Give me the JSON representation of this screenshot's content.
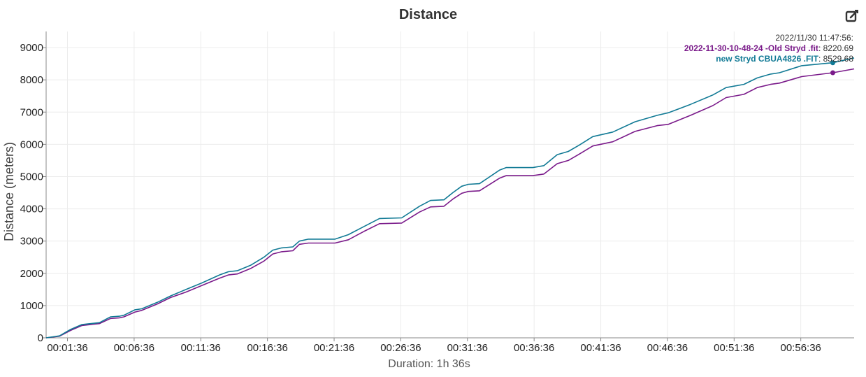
{
  "title": "Distance",
  "edit_icon": "edit-icon",
  "tooltip": {
    "timestamp": "2022/11/30 11:47:56:",
    "entries": [
      {
        "name": "2022-11-30-10-48-24 -Old Stryd .fit",
        "value": "8220.69",
        "color": "#7a1a8a"
      },
      {
        "name": "new Stryd CBUA4826 .FIT",
        "value": "8529.68",
        "color": "#117a95"
      }
    ]
  },
  "chart_data": {
    "type": "line",
    "title": "Distance",
    "xlabel": "Duration: 1h 36s",
    "ylabel": "Distance (meters)",
    "xlim": [
      0,
      3636
    ],
    "ylim": [
      0,
      9500
    ],
    "grid": true,
    "legend": "top-right",
    "x_ticks": [
      {
        "value": 96,
        "label": "00:01:36"
      },
      {
        "value": 396,
        "label": "00:06:36"
      },
      {
        "value": 696,
        "label": "00:11:36"
      },
      {
        "value": 996,
        "label": "00:16:36"
      },
      {
        "value": 1296,
        "label": "00:21:36"
      },
      {
        "value": 1596,
        "label": "00:26:36"
      },
      {
        "value": 1896,
        "label": "00:31:36"
      },
      {
        "value": 2196,
        "label": "00:36:36"
      },
      {
        "value": 2496,
        "label": "00:41:36"
      },
      {
        "value": 2796,
        "label": "00:46:36"
      },
      {
        "value": 3096,
        "label": "00:51:36"
      },
      {
        "value": 3396,
        "label": "00:56:36"
      }
    ],
    "y_ticks": [
      0,
      1000,
      2000,
      3000,
      4000,
      5000,
      6000,
      7000,
      8000,
      9000
    ],
    "cursor_x": 3540,
    "series": [
      {
        "name": "2022-11-30-10-48-24 -Old Stryd .fit",
        "color": "#7a1a8a",
        "cursor_value": 8220.69,
        "points": [
          [
            0,
            0
          ],
          [
            60,
            50
          ],
          [
            110,
            230
          ],
          [
            160,
            380
          ],
          [
            210,
            420
          ],
          [
            240,
            440
          ],
          [
            290,
            600
          ],
          [
            330,
            620
          ],
          [
            350,
            650
          ],
          [
            400,
            800
          ],
          [
            430,
            850
          ],
          [
            500,
            1050
          ],
          [
            560,
            1250
          ],
          [
            630,
            1420
          ],
          [
            700,
            1620
          ],
          [
            780,
            1850
          ],
          [
            820,
            1950
          ],
          [
            860,
            1980
          ],
          [
            920,
            2150
          ],
          [
            980,
            2380
          ],
          [
            1020,
            2600
          ],
          [
            1060,
            2670
          ],
          [
            1110,
            2700
          ],
          [
            1140,
            2900
          ],
          [
            1180,
            2940
          ],
          [
            1300,
            2940
          ],
          [
            1360,
            3040
          ],
          [
            1430,
            3300
          ],
          [
            1500,
            3540
          ],
          [
            1600,
            3560
          ],
          [
            1680,
            3900
          ],
          [
            1730,
            4060
          ],
          [
            1790,
            4080
          ],
          [
            1830,
            4300
          ],
          [
            1870,
            4480
          ],
          [
            1900,
            4540
          ],
          [
            1950,
            4560
          ],
          [
            2040,
            4950
          ],
          [
            2070,
            5030
          ],
          [
            2190,
            5030
          ],
          [
            2240,
            5080
          ],
          [
            2300,
            5400
          ],
          [
            2350,
            5500
          ],
          [
            2400,
            5700
          ],
          [
            2460,
            5950
          ],
          [
            2550,
            6080
          ],
          [
            2650,
            6400
          ],
          [
            2750,
            6580
          ],
          [
            2800,
            6620
          ],
          [
            2900,
            6900
          ],
          [
            3000,
            7200
          ],
          [
            3060,
            7450
          ],
          [
            3140,
            7550
          ],
          [
            3200,
            7760
          ],
          [
            3260,
            7860
          ],
          [
            3300,
            7900
          ],
          [
            3400,
            8100
          ],
          [
            3540,
            8220.69
          ],
          [
            3636,
            8340
          ]
        ]
      },
      {
        "name": "new Stryd CBUA4826 .FIT",
        "color": "#117a95",
        "cursor_value": 8529.68,
        "points": [
          [
            0,
            0
          ],
          [
            60,
            60
          ],
          [
            110,
            260
          ],
          [
            160,
            410
          ],
          [
            210,
            450
          ],
          [
            240,
            470
          ],
          [
            290,
            650
          ],
          [
            330,
            670
          ],
          [
            350,
            700
          ],
          [
            400,
            870
          ],
          [
            430,
            900
          ],
          [
            500,
            1100
          ],
          [
            560,
            1300
          ],
          [
            630,
            1500
          ],
          [
            700,
            1700
          ],
          [
            780,
            1950
          ],
          [
            820,
            2050
          ],
          [
            860,
            2080
          ],
          [
            920,
            2250
          ],
          [
            980,
            2500
          ],
          [
            1020,
            2720
          ],
          [
            1060,
            2790
          ],
          [
            1110,
            2820
          ],
          [
            1140,
            3000
          ],
          [
            1180,
            3060
          ],
          [
            1300,
            3060
          ],
          [
            1360,
            3200
          ],
          [
            1430,
            3450
          ],
          [
            1500,
            3700
          ],
          [
            1600,
            3720
          ],
          [
            1680,
            4080
          ],
          [
            1730,
            4260
          ],
          [
            1790,
            4280
          ],
          [
            1830,
            4500
          ],
          [
            1870,
            4700
          ],
          [
            1900,
            4760
          ],
          [
            1950,
            4780
          ],
          [
            2040,
            5200
          ],
          [
            2070,
            5280
          ],
          [
            2190,
            5280
          ],
          [
            2240,
            5340
          ],
          [
            2300,
            5680
          ],
          [
            2350,
            5780
          ],
          [
            2400,
            5980
          ],
          [
            2460,
            6240
          ],
          [
            2550,
            6380
          ],
          [
            2650,
            6700
          ],
          [
            2750,
            6900
          ],
          [
            2800,
            6980
          ],
          [
            2900,
            7240
          ],
          [
            3000,
            7530
          ],
          [
            3060,
            7760
          ],
          [
            3140,
            7860
          ],
          [
            3200,
            8060
          ],
          [
            3260,
            8180
          ],
          [
            3300,
            8220
          ],
          [
            3400,
            8440
          ],
          [
            3540,
            8529.68
          ],
          [
            3636,
            8680
          ]
        ]
      }
    ]
  }
}
